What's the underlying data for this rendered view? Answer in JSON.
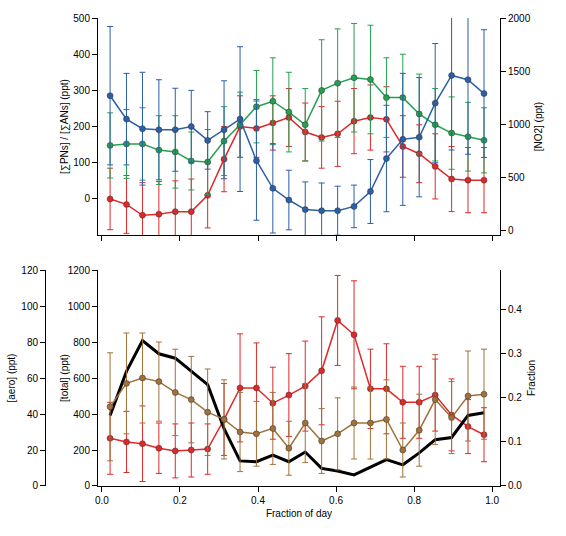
{
  "chart_data": [
    {
      "type": "line",
      "ylabel": "[∑PNs] / [∑ANs] (ppt)",
      "y2label": "[NO2] (ppt)",
      "x": [
        0.021,
        0.063,
        0.104,
        0.146,
        0.188,
        0.229,
        0.271,
        0.313,
        0.354,
        0.396,
        0.438,
        0.479,
        0.521,
        0.563,
        0.604,
        0.646,
        0.688,
        0.729,
        0.771,
        0.813,
        0.854,
        0.896,
        0.938,
        0.979
      ],
      "xlim": [
        -0.01,
        1.02
      ],
      "xticks": [
        0,
        0.2,
        0.4,
        0.6,
        0.8,
        1
      ],
      "tick_labels": "y",
      "ylim": [
        -100,
        500
      ],
      "yticks": [
        0,
        100,
        200,
        300,
        400,
        500
      ],
      "y2lim": [
        -40,
        2000
      ],
      "y2ticks": [
        0,
        500,
        1000,
        1500,
        2000
      ],
      "grid": false,
      "series": [
        {
          "color": "#e02828",
          "marker": "circle",
          "line_style": "solid",
          "axis": "y",
          "values": [
            0,
            -15,
            -45,
            -42,
            -35,
            -35,
            10,
            110,
            200,
            195,
            210,
            225,
            185,
            170,
            180,
            215,
            225,
            220,
            145,
            125,
            90,
            55,
            52,
            52
          ],
          "errors": [
            85,
            80,
            90,
            90,
            85,
            90,
            90,
            90,
            85,
            80,
            75,
            80,
            80,
            85,
            90,
            90,
            90,
            90,
            85,
            80,
            90,
            90,
            90,
            90
          ]
        },
        {
          "color": "#24a050",
          "marker": "circle",
          "line_style": "solid",
          "axis": "y",
          "values": [
            148,
            152,
            152,
            135,
            130,
            105,
            102,
            160,
            205,
            255,
            270,
            240,
            205,
            300,
            320,
            335,
            330,
            280,
            280,
            235,
            205,
            182,
            172,
            162
          ],
          "errors": [
            90,
            95,
            100,
            95,
            100,
            80,
            90,
            95,
            90,
            100,
            120,
            110,
            100,
            140,
            150,
            150,
            150,
            110,
            120,
            110,
            100,
            100,
            95,
            90
          ]
        },
        {
          "color": "#2b5fa8",
          "marker": "circle",
          "line_style": "solid",
          "axis": "y2",
          "values": [
            1270,
            1050,
            960,
            950,
            950,
            980,
            850,
            950,
            1050,
            660,
            400,
            290,
            200,
            190,
            190,
            230,
            370,
            680,
            860,
            880,
            1200,
            1460,
            1420,
            1290
          ],
          "errors": [
            650,
            430,
            530,
            470,
            390,
            340,
            270,
            460,
            680,
            560,
            420,
            280,
            260,
            260,
            230,
            200,
            300,
            500,
            620,
            560,
            560,
            700,
            700,
            600
          ]
        }
      ]
    },
    {
      "type": "line",
      "xlabel": "Fraction of day",
      "ylabel": "[total] (ppt)",
      "y2label": "Fraction",
      "y3label": "[aero] (ppt)",
      "x": [
        0.021,
        0.063,
        0.104,
        0.146,
        0.188,
        0.229,
        0.271,
        0.313,
        0.354,
        0.396,
        0.438,
        0.479,
        0.521,
        0.563,
        0.604,
        0.646,
        0.688,
        0.729,
        0.771,
        0.813,
        0.854,
        0.896,
        0.938,
        0.979
      ],
      "xlim": [
        -0.01,
        1.02
      ],
      "xticks": [
        {
          "value": 0,
          "label": "0.0"
        },
        {
          "value": 0.2,
          "label": "0.2"
        },
        {
          "value": 0.4,
          "label": "0.4"
        },
        {
          "value": 0.6,
          "label": "0.6"
        },
        {
          "value": 0.8,
          "label": "0.8"
        },
        {
          "value": 1,
          "label": "1.0"
        }
      ],
      "ylim": [
        0,
        1200
      ],
      "yticks": [
        0,
        200,
        400,
        600,
        800,
        1000,
        1200
      ],
      "y2lim": [
        0,
        0.49
      ],
      "y2ticks": [
        {
          "value": 0,
          "label": "0.0"
        },
        {
          "value": 0.1,
          "label": "0.1"
        },
        {
          "value": 0.2,
          "label": "0.2"
        },
        {
          "value": 0.3,
          "label": "0.3"
        },
        {
          "value": 0.4,
          "label": "0.4"
        }
      ],
      "y3lim": [
        0,
        120
      ],
      "y3ticks": [
        0,
        20,
        40,
        60,
        80,
        100,
        120
      ],
      "grid": false,
      "series": [
        {
          "color": "#e02828",
          "marker": "circle",
          "line_style": "solid",
          "axis": "y",
          "values": [
            265,
            245,
            235,
            210,
            195,
            200,
            205,
            370,
            545,
            545,
            460,
            505,
            555,
            640,
            920,
            840,
            540,
            540,
            465,
            465,
            505,
            395,
            330,
            285
          ],
          "errors": [
            200,
            170,
            210,
            140,
            150,
            150,
            140,
            200,
            300,
            250,
            200,
            230,
            250,
            300,
            250,
            300,
            220,
            250,
            200,
            200,
            200,
            200,
            150,
            150
          ]
        },
        {
          "color": "#a0723a",
          "marker": "circle",
          "line_style": "solid",
          "axis": "y3",
          "values": [
            44,
            57,
            60,
            58,
            52,
            48,
            41,
            37,
            30,
            29,
            32,
            21,
            35,
            25,
            29,
            35,
            35,
            37,
            20,
            31,
            48,
            38,
            50,
            51
          ],
          "errors": [
            30,
            28,
            25,
            22,
            24,
            24,
            24,
            22,
            22,
            18,
            20,
            15,
            22,
            18,
            20,
            20,
            20,
            22,
            15,
            20,
            25,
            20,
            25,
            25
          ]
        },
        {
          "color": "#000000",
          "marker": "none",
          "line_style": "solid",
          "axis": "y2",
          "values": [
            0.16,
            0.26,
            0.33,
            0.3,
            0.29,
            0.26,
            0.23,
            0.13,
            0.057,
            0.055,
            0.07,
            0.055,
            0.077,
            0.04,
            0.034,
            0.025,
            0.043,
            0.06,
            0.048,
            0.075,
            0.105,
            0.11,
            0.16,
            0.166
          ]
        }
      ]
    }
  ]
}
